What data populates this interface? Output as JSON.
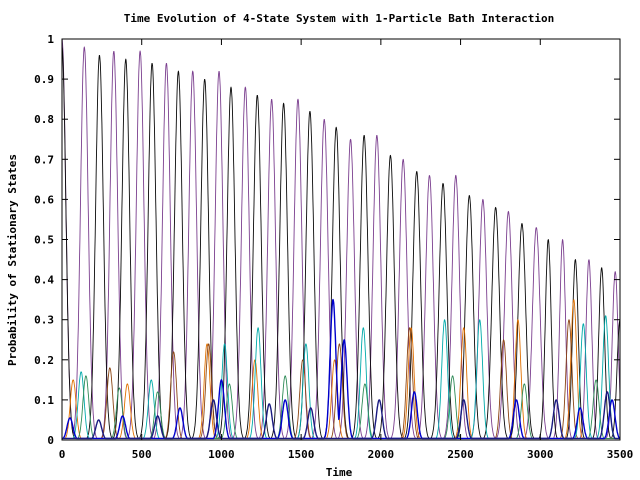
{
  "chart_data": {
    "type": "line",
    "title": "Time Evolution of 4-State System with 1-Particle Bath Interaction",
    "xlabel": "Time",
    "ylabel": "Probability of Stationary States",
    "xlim": [
      0,
      3500
    ],
    "ylim": [
      0,
      1
    ],
    "x_ticks": [
      0,
      500,
      1000,
      1500,
      2000,
      2500,
      3000,
      3500
    ],
    "x_tick_labels": [
      "0",
      "500",
      "1000",
      "1500",
      "2000",
      "2500",
      "3000",
      "3500"
    ],
    "y_ticks": [
      0,
      0.1,
      0.2,
      0.3,
      0.4,
      0.5,
      0.6,
      0.7,
      0.8,
      0.9,
      1
    ],
    "y_tick_labels": [
      "0",
      "0.1",
      "0.2",
      "0.3",
      "0.4",
      "0.5",
      "0.6",
      "0.7",
      "0.8",
      "0.9",
      "1"
    ],
    "grid": false,
    "legend": "none",
    "series": [
      {
        "color": "#7b3f8f",
        "peaks": [
          {
            "x": 0,
            "y": 1.0
          },
          {
            "x": 140,
            "y": 0.98
          },
          {
            "x": 325,
            "y": 0.97
          },
          {
            "x": 490,
            "y": 0.97
          },
          {
            "x": 655,
            "y": 0.94
          },
          {
            "x": 820,
            "y": 0.92
          },
          {
            "x": 985,
            "y": 0.92
          },
          {
            "x": 1150,
            "y": 0.88
          },
          {
            "x": 1315,
            "y": 0.85
          },
          {
            "x": 1480,
            "y": 0.85
          },
          {
            "x": 1645,
            "y": 0.8
          },
          {
            "x": 1810,
            "y": 0.75
          },
          {
            "x": 1975,
            "y": 0.76
          },
          {
            "x": 2140,
            "y": 0.7
          },
          {
            "x": 2305,
            "y": 0.66
          },
          {
            "x": 2470,
            "y": 0.66
          },
          {
            "x": 2640,
            "y": 0.6
          },
          {
            "x": 2800,
            "y": 0.57
          },
          {
            "x": 2975,
            "y": 0.53
          },
          {
            "x": 3140,
            "y": 0.5
          },
          {
            "x": 3305,
            "y": 0.45
          },
          {
            "x": 3470,
            "y": 0.42
          }
        ]
      },
      {
        "color": "#0a0a0a",
        "peaks": [
          {
            "x": 0,
            "y": 0.98
          },
          {
            "x": 235,
            "y": 0.96
          },
          {
            "x": 400,
            "y": 0.95
          },
          {
            "x": 565,
            "y": 0.94
          },
          {
            "x": 730,
            "y": 0.92
          },
          {
            "x": 895,
            "y": 0.9
          },
          {
            "x": 1060,
            "y": 0.88
          },
          {
            "x": 1225,
            "y": 0.86
          },
          {
            "x": 1390,
            "y": 0.84
          },
          {
            "x": 1555,
            "y": 0.82
          },
          {
            "x": 1720,
            "y": 0.78
          },
          {
            "x": 1895,
            "y": 0.76
          },
          {
            "x": 2060,
            "y": 0.71
          },
          {
            "x": 2225,
            "y": 0.67
          },
          {
            "x": 2390,
            "y": 0.64
          },
          {
            "x": 2555,
            "y": 0.61
          },
          {
            "x": 2720,
            "y": 0.58
          },
          {
            "x": 2885,
            "y": 0.54
          },
          {
            "x": 3050,
            "y": 0.5
          },
          {
            "x": 3220,
            "y": 0.45
          },
          {
            "x": 3385,
            "y": 0.43
          },
          {
            "x": 3500,
            "y": 0.3
          }
        ]
      },
      {
        "color": "#e07000",
        "peaks": [
          {
            "x": 70,
            "y": 0.15
          },
          {
            "x": 410,
            "y": 0.14
          },
          {
            "x": 910,
            "y": 0.24
          },
          {
            "x": 1210,
            "y": 0.2
          },
          {
            "x": 1710,
            "y": 0.2
          },
          {
            "x": 2190,
            "y": 0.28
          },
          {
            "x": 2520,
            "y": 0.28
          },
          {
            "x": 2860,
            "y": 0.3
          },
          {
            "x": 3210,
            "y": 0.35
          }
        ]
      },
      {
        "color": "#8b4513",
        "peaks": [
          {
            "x": 300,
            "y": 0.18
          },
          {
            "x": 700,
            "y": 0.22
          },
          {
            "x": 920,
            "y": 0.24
          },
          {
            "x": 1510,
            "y": 0.2
          },
          {
            "x": 1740,
            "y": 0.24
          },
          {
            "x": 2180,
            "y": 0.28
          },
          {
            "x": 2770,
            "y": 0.25
          },
          {
            "x": 3180,
            "y": 0.3
          }
        ]
      },
      {
        "color": "#00aaaa",
        "peaks": [
          {
            "x": 120,
            "y": 0.17
          },
          {
            "x": 560,
            "y": 0.15
          },
          {
            "x": 1020,
            "y": 0.24
          },
          {
            "x": 1230,
            "y": 0.28
          },
          {
            "x": 1530,
            "y": 0.24
          },
          {
            "x": 1890,
            "y": 0.28
          },
          {
            "x": 2400,
            "y": 0.3
          },
          {
            "x": 2620,
            "y": 0.3
          },
          {
            "x": 3270,
            "y": 0.29
          },
          {
            "x": 3410,
            "y": 0.31
          }
        ]
      },
      {
        "color": "#2e8b57",
        "peaks": [
          {
            "x": 150,
            "y": 0.16
          },
          {
            "x": 360,
            "y": 0.13
          },
          {
            "x": 600,
            "y": 0.12
          },
          {
            "x": 1050,
            "y": 0.14
          },
          {
            "x": 1400,
            "y": 0.16
          },
          {
            "x": 1900,
            "y": 0.14
          },
          {
            "x": 2450,
            "y": 0.16
          },
          {
            "x": 2900,
            "y": 0.14
          },
          {
            "x": 3350,
            "y": 0.15
          }
        ]
      },
      {
        "color": "#0000cc",
        "peaks": [
          {
            "x": 50,
            "y": 0.055
          },
          {
            "x": 380,
            "y": 0.06
          },
          {
            "x": 740,
            "y": 0.08
          },
          {
            "x": 1000,
            "y": 0.15
          },
          {
            "x": 1400,
            "y": 0.1
          },
          {
            "x": 1700,
            "y": 0.35
          },
          {
            "x": 1770,
            "y": 0.25
          },
          {
            "x": 2210,
            "y": 0.12
          },
          {
            "x": 2850,
            "y": 0.1
          },
          {
            "x": 3250,
            "y": 0.08
          },
          {
            "x": 3450,
            "y": 0.1
          }
        ]
      },
      {
        "color": "#1a1a80",
        "peaks": [
          {
            "x": 230,
            "y": 0.05
          },
          {
            "x": 600,
            "y": 0.06
          },
          {
            "x": 950,
            "y": 0.1
          },
          {
            "x": 1300,
            "y": 0.09
          },
          {
            "x": 1560,
            "y": 0.08
          },
          {
            "x": 1990,
            "y": 0.1
          },
          {
            "x": 2520,
            "y": 0.1
          },
          {
            "x": 3100,
            "y": 0.1
          },
          {
            "x": 3420,
            "y": 0.12
          }
        ]
      }
    ]
  }
}
